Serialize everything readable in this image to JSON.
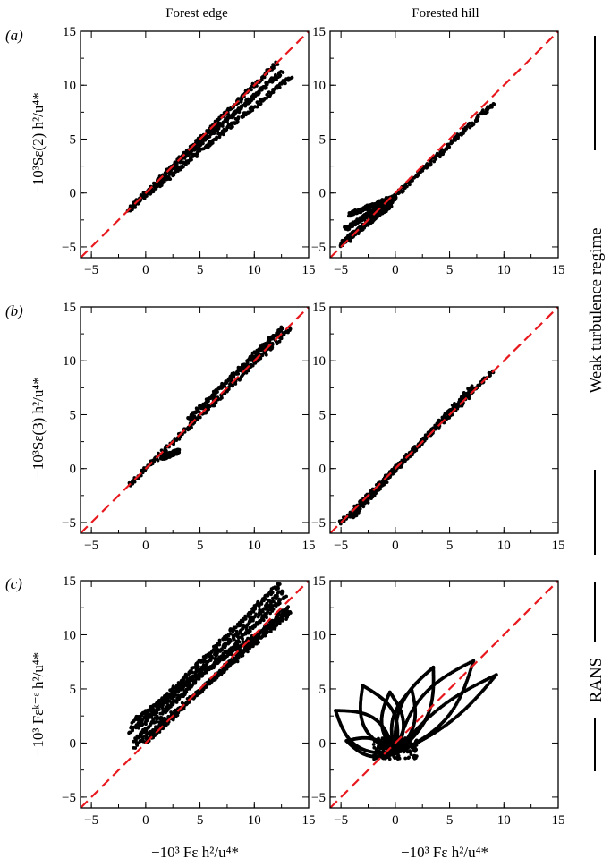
{
  "figure": {
    "column_titles": [
      "Forest edge",
      "Forested hill"
    ],
    "row_labels": [
      "(a)",
      "(b)",
      "(c)"
    ],
    "y_labels": [
      "−10³Sε(2) h²/u⁴*",
      "−10³Sε(3) h²/u⁴*",
      "−10³ Fεᵏ⁻ᵋ h²/u⁴*"
    ],
    "x_label": "−10³ Fε h²/u⁴*",
    "side_labels": [
      "Weak turbulence regime",
      "RANS"
    ],
    "colors": {
      "points": "#000000",
      "reference_line": "#e8191e",
      "frame": "#000000"
    }
  },
  "chart_data": [
    {
      "type": "scatter",
      "panel": "(a) Forest edge",
      "xlim": [
        -6,
        15
      ],
      "ylim": [
        -6,
        15
      ],
      "xticks": [
        -5,
        0,
        5,
        10,
        15
      ],
      "yticks": [
        -5,
        0,
        5,
        10,
        15
      ],
      "reference_line": "y = x",
      "branches": [
        {
          "x": [
            -1.5,
            13.3
          ],
          "y": [
            -1.5,
            10.8
          ]
        },
        {
          "x": [
            -1.5,
            12.0
          ],
          "y": [
            -1.5,
            12.0
          ]
        },
        {
          "x": [
            2.0,
            12.5
          ],
          "y": [
            2.0,
            11.2
          ]
        }
      ]
    },
    {
      "type": "scatter",
      "panel": "(a) Forested hill",
      "xlim": [
        -6,
        15
      ],
      "ylim": [
        -6,
        15
      ],
      "xticks": [
        -5,
        0,
        5,
        10,
        15
      ],
      "yticks": [
        -5,
        0,
        5,
        10,
        15
      ],
      "reference_line": "y = x",
      "branches": [
        {
          "x": [
            -5.0,
            9.0
          ],
          "y": [
            -5.0,
            8.3
          ]
        },
        {
          "x": [
            -5.0,
            -0.5
          ],
          "y": [
            -4.7,
            -1.2
          ]
        },
        {
          "x": [
            -4.6,
            0.0
          ],
          "y": [
            -3.3,
            -0.5
          ]
        },
        {
          "x": [
            -4.2,
            0.0
          ],
          "y": [
            -2.0,
            -0.3
          ]
        }
      ]
    },
    {
      "type": "scatter",
      "panel": "(b) Forest edge",
      "xlim": [
        -6,
        15
      ],
      "ylim": [
        -6,
        15
      ],
      "xticks": [
        -5,
        0,
        5,
        10,
        15
      ],
      "yticks": [
        -5,
        0,
        5,
        10,
        15
      ],
      "reference_line": "y = x",
      "branches": [
        {
          "x": [
            -1.5,
            13.3
          ],
          "y": [
            -1.5,
            13.0
          ]
        },
        {
          "x": [
            4.0,
            12.5
          ],
          "y": [
            4.6,
            13.0
          ]
        },
        {
          "x": [
            1.5,
            3.0
          ],
          "y": [
            1.0,
            1.6
          ]
        }
      ]
    },
    {
      "type": "scatter",
      "panel": "(b) Forested hill",
      "xlim": [
        -6,
        15
      ],
      "ylim": [
        -6,
        15
      ],
      "xticks": [
        -5,
        0,
        5,
        10,
        15
      ],
      "yticks": [
        -5,
        0,
        5,
        10,
        15
      ],
      "reference_line": "y = x",
      "branches": [
        {
          "x": [
            -5.0,
            9.0
          ],
          "y": [
            -5.0,
            9.0
          ]
        },
        {
          "x": [
            -4.0,
            7.0
          ],
          "y": [
            -4.5,
            7.5
          ]
        }
      ]
    },
    {
      "type": "scatter",
      "panel": "(c) Forest edge",
      "xlim": [
        -6,
        15
      ],
      "ylim": [
        -6,
        15
      ],
      "xticks": [
        -5,
        0,
        5,
        10,
        15
      ],
      "yticks": [
        -5,
        0,
        5,
        10,
        15
      ],
      "reference_line": "y = x",
      "branches": [
        {
          "x": [
            -1.5,
            12.3
          ],
          "y": [
            1.0,
            14.7
          ]
        },
        {
          "x": [
            -1.0,
            13.3
          ],
          "y": [
            -0.3,
            12.0
          ]
        },
        {
          "x": [
            0.0,
            13.0
          ],
          "y": [
            0.0,
            12.5
          ]
        },
        {
          "x": [
            -1.0,
            12.8
          ],
          "y": [
            0.3,
            13.5
          ]
        },
        {
          "x": [
            -0.5,
            12.5
          ],
          "y": [
            1.5,
            14.0
          ]
        },
        {
          "x": [
            -1.2,
            13.0
          ],
          "y": [
            2.0,
            12.0
          ]
        }
      ]
    },
    {
      "type": "scatter",
      "panel": "(c) Forested hill",
      "xlim": [
        -6,
        15
      ],
      "ylim": [
        -6,
        15
      ],
      "xticks": [
        -5,
        0,
        5,
        10,
        15
      ],
      "yticks": [
        -5,
        0,
        5,
        10,
        15
      ],
      "reference_line": "y = x",
      "loops": [
        {
          "from": [
            0.0,
            -1.0
          ],
          "to": [
            -5.5,
            3.0
          ],
          "bulge": 1.5
        },
        {
          "from": [
            0.0,
            -1.0
          ],
          "to": [
            -3.0,
            5.3
          ],
          "bulge": 1.5
        },
        {
          "from": [
            0.0,
            -1.0
          ],
          "to": [
            -0.5,
            4.7
          ],
          "bulge": 1.0
        },
        {
          "from": [
            0.0,
            -1.0
          ],
          "to": [
            1.5,
            5.0
          ],
          "bulge": 1.0
        },
        {
          "from": [
            0.0,
            -1.0
          ],
          "to": [
            3.5,
            7.0
          ],
          "bulge": 1.3
        },
        {
          "from": [
            0.0,
            -1.0
          ],
          "to": [
            7.2,
            7.6
          ],
          "bulge": 1.5
        },
        {
          "from": [
            0.0,
            -1.0
          ],
          "to": [
            9.3,
            6.3
          ],
          "bulge": 0.8
        },
        {
          "from": [
            0.0,
            -1.0
          ],
          "to": [
            -4.5,
            0.2
          ],
          "bulge": 0.8
        }
      ],
      "clusters": [
        {
          "x": [
            -2.0,
            2.0
          ],
          "y": [
            -1.5,
            0.5
          ]
        }
      ]
    }
  ]
}
